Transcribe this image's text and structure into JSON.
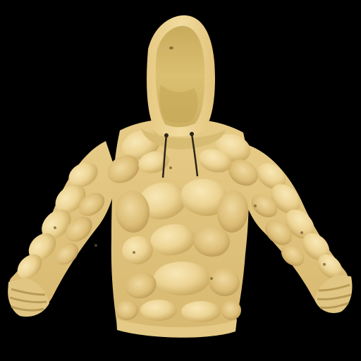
{
  "image": {
    "subject": "hoodie-icon",
    "background_color": "#000000",
    "colors": {
      "fabric_base": "#e9cf8c",
      "fabric_light": "#f6e4ad",
      "fabric_shadow": "#c9a95e",
      "fabric_dark": "#a8884a",
      "hood_inner": "#d9bd6c",
      "hood_inner_shade": "#bfa055",
      "drawstring": "#2a2416",
      "cuff": "#e3c985"
    }
  }
}
